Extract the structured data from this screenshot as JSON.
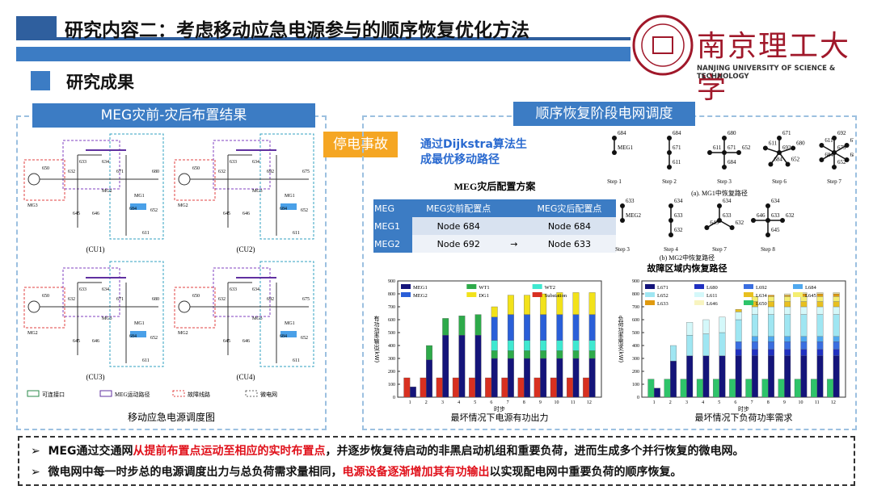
{
  "header": {
    "title": "研究内容二：考虑移动应急电源参与的顺序恢复优化方法",
    "logo_name": "南京理工大学",
    "logo_english": "NANJING UNIVERSITY OF SCIENCE & TECHNOLOGY"
  },
  "section": {
    "title": "研究成果"
  },
  "left_panel": {
    "title": "MEG灾前-灾后布置结果",
    "caption": "移动应急电源调度图",
    "cus": [
      {
        "label": "(CU1)",
        "nodes": [
          "650",
          "632",
          "633",
          "634",
          "671",
          "680",
          "645",
          "646",
          "684",
          "652",
          "611"
        ],
        "mgs": [
          "MG2",
          "MG1",
          "MG3"
        ]
      },
      {
        "label": "(CU2)",
        "nodes": [
          "650",
          "632",
          "633",
          "634",
          "692",
          "675",
          "645",
          "646",
          "684",
          "652",
          "611"
        ],
        "mgs": [
          "MG3",
          "MG1",
          "MG2"
        ]
      },
      {
        "label": "(CU3)",
        "nodes": [
          "650",
          "632",
          "633",
          "634",
          "671",
          "680",
          "645",
          "646",
          "684",
          "652",
          "611"
        ],
        "mgs": [
          "MG3",
          "MG1",
          "MG2"
        ]
      },
      {
        "label": "(CU4)",
        "nodes": [
          "650",
          "632",
          "633",
          "634",
          "692",
          "675",
          "645",
          "646",
          "684",
          "652",
          "611"
        ],
        "mgs": [
          "MG3",
          "MG1",
          "MG2"
        ]
      }
    ],
    "legend": [
      "可连接口",
      "MEG运动路径",
      "故障线路",
      "微电网"
    ]
  },
  "event": {
    "label": "停电事故"
  },
  "right_panel": {
    "title": "顺序恢复阶段电网调度",
    "dijkstra": [
      "通过Dijkstra算法生",
      "成最优移动路径"
    ],
    "table": {
      "title": "MEG灾后配置方案",
      "headers": [
        "MEG",
        "MEG灾前配置点",
        "MEG灾后配置点"
      ],
      "rows": [
        {
          "meg": "MEG1",
          "before": "Node 684",
          "after": "Node 684"
        },
        {
          "meg": "MEG2",
          "before": "Node 692",
          "after": "Node 633"
        }
      ],
      "arrow": "→"
    },
    "paths": {
      "mg1": {
        "caption": "(a). MG1中恢复路径",
        "steps": [
          {
            "label": "Step 1",
            "nodes": [
              "MEG1",
              "684"
            ]
          },
          {
            "label": "Step 2",
            "nodes": [
              "671",
              "684",
              "611"
            ]
          },
          {
            "label": "Step 3",
            "nodes": [
              "671",
              "680",
              "652",
              "684",
              "611"
            ]
          },
          {
            "label": "Step 6",
            "nodes": [
              "692",
              "671",
              "680",
              "652",
              "684",
              "611"
            ]
          },
          {
            "label": "Step 7",
            "nodes": [
              "675",
              "692",
              "671",
              "680",
              "652",
              "684",
              "611"
            ]
          }
        ]
      },
      "mg2": {
        "caption": "(b) MG2中恢复路径",
        "steps": [
          {
            "label": "Step 3",
            "nodes": [
              "MEG2",
              "633"
            ]
          },
          {
            "label": "Step 4",
            "nodes": [
              "633",
              "634",
              "632"
            ]
          },
          {
            "label": "Step 7",
            "nodes": [
              "633",
              "634",
              "632",
              "645"
            ]
          },
          {
            "label": "Step 8",
            "nodes": [
              "633",
              "634",
              "632",
              "645",
              "646"
            ]
          }
        ]
      },
      "title": "故障区域内恢复路径"
    }
  },
  "chart_data": [
    {
      "type": "bar",
      "caption": "最坏情况下电源有功出力",
      "ylabel": "有功功率输出(kW)",
      "xlabel": "时步",
      "categories": [
        "1",
        "2",
        "3",
        "4",
        "5",
        "6",
        "7",
        "8",
        "9",
        "10",
        "11",
        "12"
      ],
      "ylim": [
        0,
        900
      ],
      "yticks": [
        0,
        100,
        200,
        300,
        400,
        500,
        600,
        700,
        800,
        900
      ],
      "legend_columns": 3,
      "series": [
        {
          "name": "MEG1",
          "color": "#14147a",
          "stack": 0,
          "values": [
            80,
            290,
            480,
            480,
            480,
            300,
            300,
            300,
            300,
            300,
            300,
            300
          ]
        },
        {
          "name": "WT1",
          "color": "#2eaa4a",
          "stack": 0,
          "values": [
            0,
            110,
            130,
            150,
            160,
            60,
            60,
            60,
            60,
            60,
            60,
            60
          ]
        },
        {
          "name": "WT2",
          "color": "#3fe8d0",
          "stack": 0,
          "values": [
            0,
            0,
            0,
            0,
            0,
            80,
            80,
            80,
            80,
            80,
            80,
            80
          ]
        },
        {
          "name": "MEG2",
          "color": "#2a5fd8",
          "stack": 0,
          "values": [
            0,
            0,
            0,
            0,
            0,
            180,
            200,
            200,
            200,
            200,
            200,
            200
          ]
        },
        {
          "name": "DG1",
          "color": "#f2e21a",
          "stack": 0,
          "values": [
            0,
            0,
            0,
            0,
            0,
            80,
            150,
            150,
            160,
            170,
            170,
            170
          ]
        },
        {
          "name": "Substation",
          "color": "#d83020",
          "stack": 1,
          "values": [
            150,
            150,
            150,
            150,
            150,
            150,
            150,
            150,
            150,
            150,
            150,
            150
          ]
        }
      ]
    },
    {
      "type": "bar",
      "caption": "最坏情况下负荷功率需求",
      "ylabel": "负荷功率需求(kW)",
      "xlabel": "时步",
      "categories": [
        "1",
        "2",
        "3",
        "4",
        "5",
        "6",
        "7",
        "8",
        "9",
        "10",
        "11",
        "12"
      ],
      "ylim": [
        0,
        900
      ],
      "yticks": [
        0,
        100,
        200,
        300,
        400,
        500,
        600,
        700,
        800,
        900
      ],
      "legend_columns": 4,
      "series": [
        {
          "name": "L671",
          "color": "#14147a",
          "stack": 0,
          "values": [
            70,
            280,
            320,
            320,
            320,
            320,
            320,
            320,
            320,
            320,
            320,
            320
          ]
        },
        {
          "name": "L680",
          "color": "#2030c0",
          "stack": 0,
          "values": [
            0,
            0,
            0,
            0,
            0,
            50,
            50,
            50,
            50,
            50,
            50,
            50
          ]
        },
        {
          "name": "L692",
          "color": "#3a6ee0",
          "stack": 0,
          "values": [
            0,
            0,
            0,
            0,
            0,
            60,
            60,
            60,
            60,
            60,
            60,
            60
          ]
        },
        {
          "name": "L684",
          "color": "#4fa8ee",
          "stack": 0,
          "values": [
            0,
            0,
            0,
            0,
            0,
            0,
            40,
            40,
            40,
            40,
            40,
            40
          ]
        },
        {
          "name": "L652",
          "color": "#9fe6f2",
          "stack": 0,
          "values": [
            0,
            120,
            160,
            170,
            180,
            170,
            170,
            170,
            170,
            170,
            170,
            170
          ]
        },
        {
          "name": "L611",
          "color": "#d4f8fa",
          "stack": 0,
          "values": [
            0,
            0,
            100,
            110,
            120,
            60,
            60,
            60,
            60,
            60,
            60,
            60
          ]
        },
        {
          "name": "L634",
          "color": "#e8c020",
          "stack": 0,
          "values": [
            0,
            0,
            0,
            0,
            0,
            20,
            40,
            40,
            40,
            40,
            40,
            40
          ]
        },
        {
          "name": "L645",
          "color": "#f4ee70",
          "stack": 0,
          "values": [
            0,
            0,
            0,
            0,
            0,
            0,
            40,
            40,
            40,
            40,
            40,
            40
          ]
        },
        {
          "name": "L633",
          "color": "#e09a10",
          "stack": 0,
          "values": [
            0,
            0,
            0,
            0,
            0,
            0,
            0,
            10,
            10,
            20,
            20,
            20
          ]
        },
        {
          "name": "L646",
          "color": "#f8f4c0",
          "stack": 0,
          "values": [
            0,
            0,
            0,
            0,
            0,
            0,
            0,
            0,
            10,
            10,
            10,
            10
          ]
        },
        {
          "name": "L650",
          "color": "#2ec46a",
          "stack": 1,
          "values": [
            140,
            140,
            140,
            140,
            140,
            140,
            140,
            140,
            140,
            140,
            140,
            140
          ]
        }
      ]
    }
  ],
  "bullets": [
    [
      {
        "text": "MEG通过交通网",
        "highlight": false
      },
      {
        "text": "从提前布置点运动至相应的实时布置点",
        "highlight": true
      },
      {
        "text": "，并逐步恢复待启动的非黑启动机组和重要负荷，进而生成多个并行恢复的微电网。",
        "highlight": false
      }
    ],
    [
      {
        "text": "微电网中每一时步总的电源调度出力与总负荷需求量相同，",
        "highlight": false
      },
      {
        "text": "电源设备逐渐增加其有功输出",
        "highlight": true
      },
      {
        "text": "以实现配电网中重要负荷的顺序恢复。",
        "highlight": false
      }
    ]
  ]
}
